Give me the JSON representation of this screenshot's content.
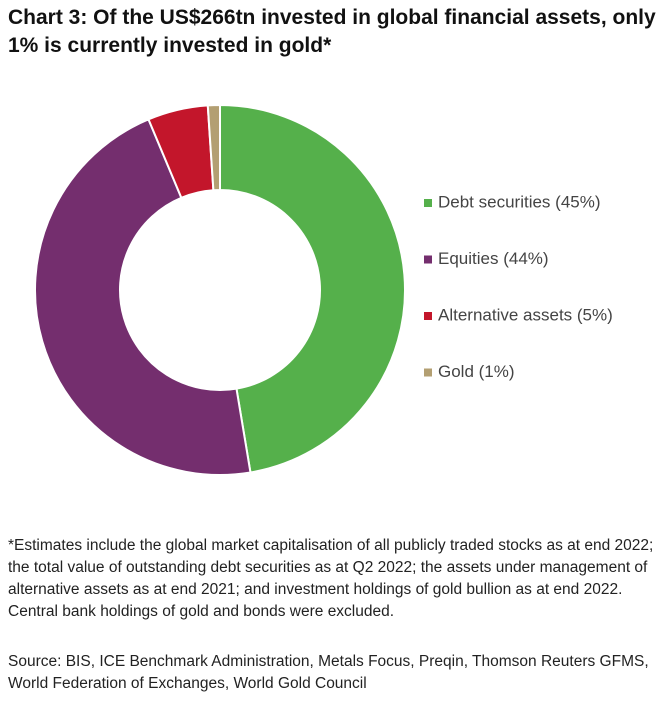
{
  "chart_data": {
    "type": "donut",
    "title": "Chart 3: Of the US$266tn invested in global financial assets, only 1% is currently invested in gold*",
    "categories": [
      "Debt securities (45%)",
      "Equities (44%)",
      "Alternative assets (5%)",
      "Gold (1%)"
    ],
    "values": [
      45,
      44,
      5,
      1
    ],
    "colors": [
      "#55b04b",
      "#742e6e",
      "#c3162b",
      "#b39f72"
    ],
    "footnote": "*Estimates include the global market capitalisation of all publicly traded stocks as at end 2022; the total value of outstanding debt securities as at Q2 2022; the assets under management of alternative assets as at end 2021; and investment holdings of gold bullion as at end 2022. Central bank holdings of gold and bonds were excluded.",
    "source": "Source: BIS, ICE Benchmark Administration, Metals Focus, Preqin, Thomson Reuters GFMS, World Federation of Exchanges, World Gold Council"
  }
}
